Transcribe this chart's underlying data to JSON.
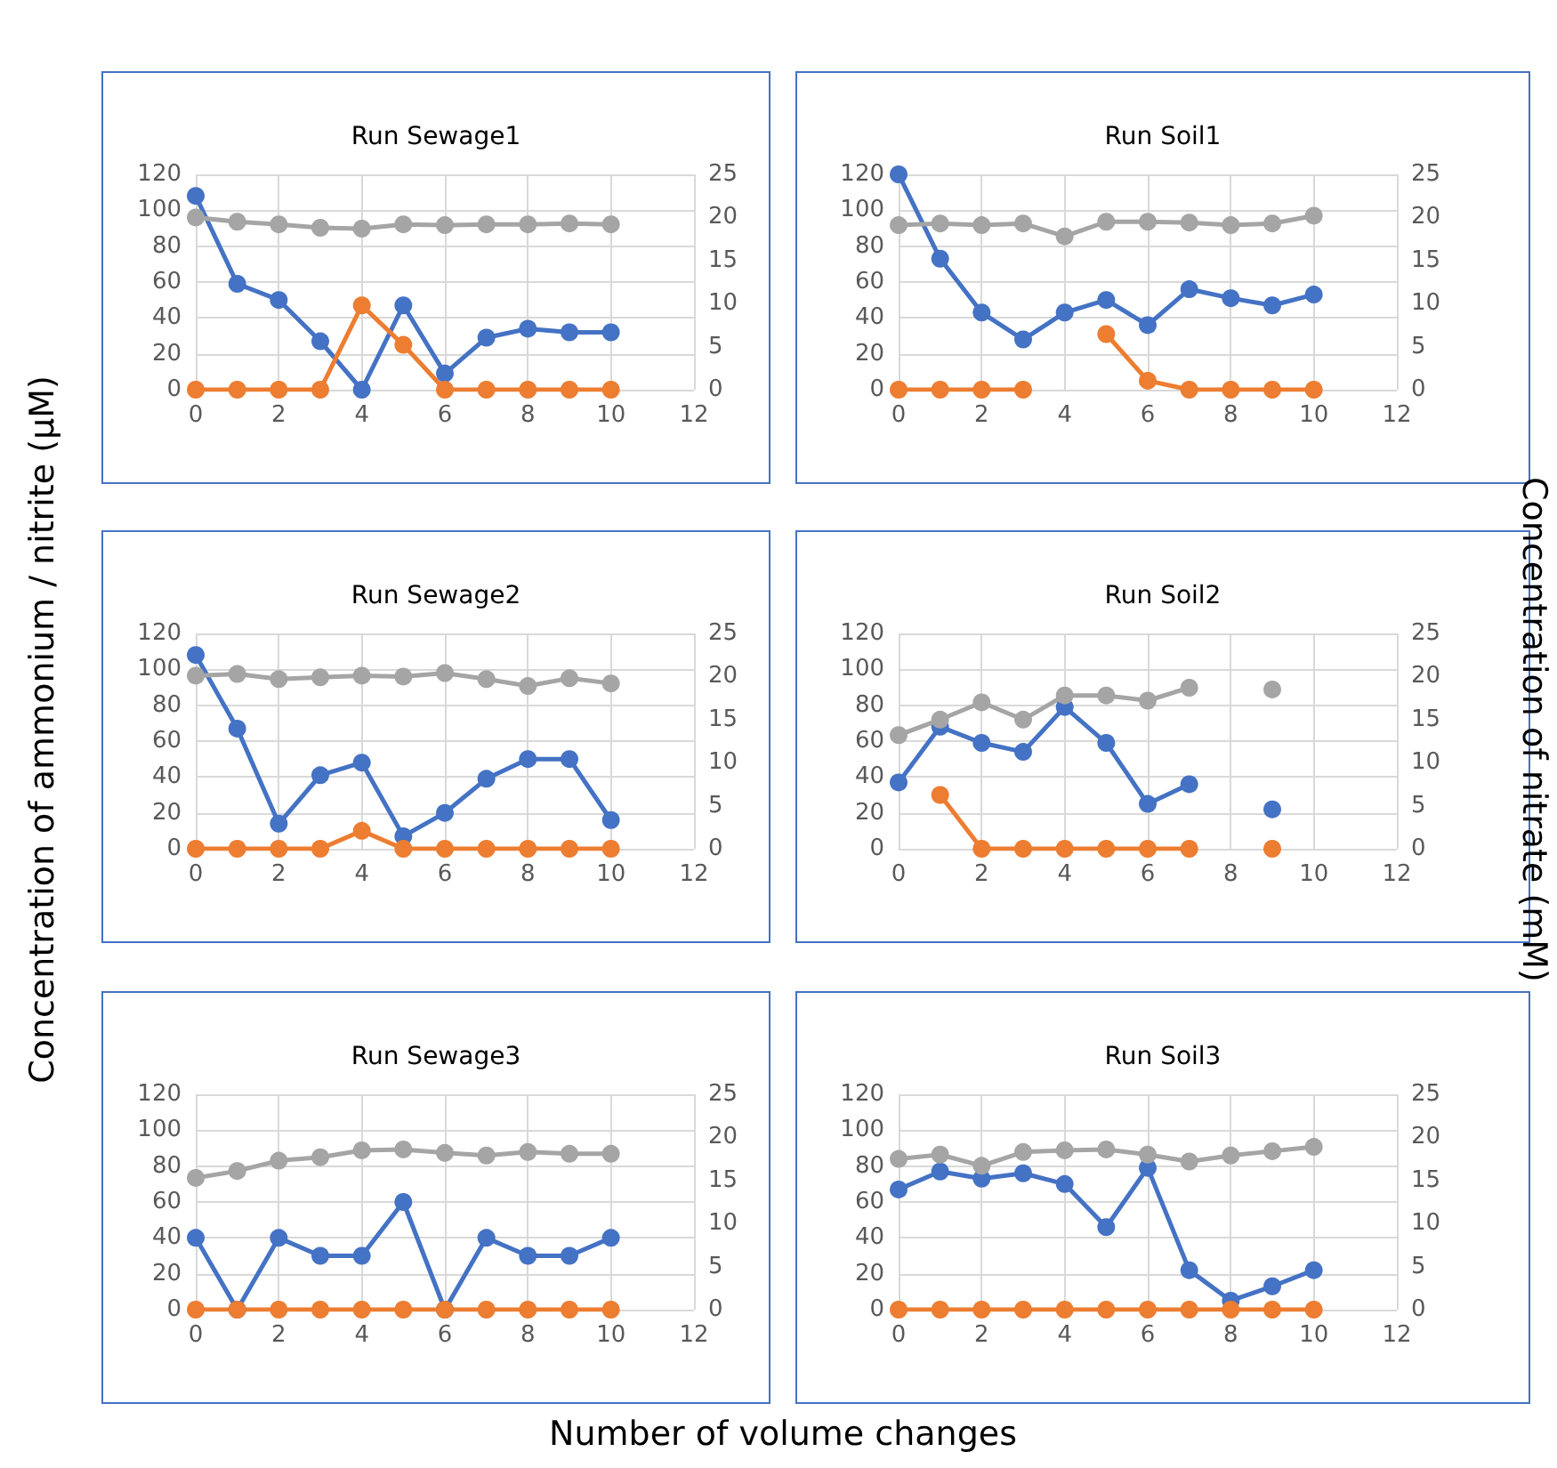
{
  "chart_data": [
    {
      "type": "line",
      "title": "Run Sewage1",
      "xlabel": "Number of volume changes",
      "ylabel": "Concentration of ammonium / nitrite (µM)",
      "y2label": "Concentration of nitrate (mM)",
      "x": [
        0,
        1,
        2,
        3,
        4,
        5,
        6,
        7,
        8,
        9,
        10
      ],
      "xlim": [
        0,
        12
      ],
      "xticks": [
        0,
        2,
        4,
        6,
        8,
        10,
        12
      ],
      "ylim": [
        0,
        120
      ],
      "yticks": [
        0,
        20,
        40,
        60,
        80,
        100,
        120
      ],
      "y2lim": [
        0,
        25
      ],
      "y2ticks": [
        0,
        5,
        10,
        15,
        20,
        25
      ],
      "grid": true,
      "marker": "circle",
      "line_style": "solid",
      "series": [
        {
          "color": "#a5a5a5",
          "axis": "y2",
          "values": [
            20,
            19.5,
            19.2,
            18.8,
            18.7,
            19.2,
            19.1,
            19.2,
            19.2,
            19.3,
            19.2
          ]
        },
        {
          "color": "#4472c4",
          "values": [
            108,
            59,
            50,
            27,
            0,
            47,
            9,
            29,
            34,
            32,
            32
          ]
        },
        {
          "color": "#ed7d31",
          "values": [
            0,
            0,
            0,
            0,
            47,
            25,
            0,
            0,
            0,
            0,
            0
          ]
        }
      ]
    },
    {
      "type": "line",
      "title": "Run Soil1",
      "x": [
        0,
        1,
        2,
        3,
        4,
        5,
        6,
        7,
        8,
        9,
        10
      ],
      "xlim": [
        0,
        12
      ],
      "xticks": [
        0,
        2,
        4,
        6,
        8,
        10,
        12
      ],
      "ylim": [
        0,
        120
      ],
      "yticks": [
        0,
        20,
        40,
        60,
        80,
        100,
        120
      ],
      "y2lim": [
        0,
        25
      ],
      "y2ticks": [
        0,
        5,
        10,
        15,
        20,
        25
      ],
      "grid": true,
      "marker": "circle",
      "line_style": "solid",
      "series": [
        {
          "color": "#a5a5a5",
          "axis": "y2",
          "values": [
            19.1,
            19.3,
            19.1,
            19.3,
            17.8,
            19.5,
            19.5,
            19.4,
            19.1,
            19.3,
            20.2
          ]
        },
        {
          "color": "#4472c4",
          "values": [
            120,
            73,
            43,
            28,
            43,
            50,
            36,
            56,
            51,
            47,
            53
          ]
        },
        {
          "color": "#ed7d31",
          "values": [
            0,
            0,
            0,
            0,
            null,
            31,
            5,
            0,
            0,
            0,
            0
          ]
        }
      ]
    },
    {
      "type": "line",
      "title": "Run Sewage2",
      "x": [
        0,
        1,
        2,
        3,
        4,
        5,
        6,
        7,
        8,
        9,
        10
      ],
      "xlim": [
        0,
        12
      ],
      "xticks": [
        0,
        2,
        4,
        6,
        8,
        10,
        12
      ],
      "ylim": [
        0,
        120
      ],
      "yticks": [
        0,
        20,
        40,
        60,
        80,
        100,
        120
      ],
      "y2lim": [
        0,
        25
      ],
      "y2ticks": [
        0,
        5,
        10,
        15,
        20,
        25
      ],
      "grid": true,
      "marker": "circle",
      "line_style": "solid",
      "series": [
        {
          "color": "#a5a5a5",
          "axis": "y2",
          "values": [
            20.1,
            20.3,
            19.7,
            19.9,
            20.1,
            20,
            20.4,
            19.7,
            18.9,
            19.8,
            19.2
          ]
        },
        {
          "color": "#4472c4",
          "values": [
            108,
            67,
            14,
            41,
            48,
            7,
            20,
            39,
            50,
            50,
            16
          ]
        },
        {
          "color": "#ed7d31",
          "values": [
            0,
            0,
            0,
            0,
            10,
            0,
            0,
            0,
            0,
            0,
            0
          ]
        }
      ]
    },
    {
      "type": "line",
      "title": "Run Soil2",
      "x": [
        0,
        1,
        2,
        3,
        4,
        5,
        6,
        7,
        8,
        9
      ],
      "xlim": [
        0,
        12
      ],
      "xticks": [
        0,
        2,
        4,
        6,
        8,
        10,
        12
      ],
      "ylim": [
        0,
        120
      ],
      "yticks": [
        0,
        20,
        40,
        60,
        80,
        100,
        120
      ],
      "y2lim": [
        0,
        25
      ],
      "y2ticks": [
        0,
        5,
        10,
        15,
        20,
        25
      ],
      "grid": true,
      "marker": "circle",
      "line_style": "solid",
      "series": [
        {
          "color": "#a5a5a5",
          "axis": "y2",
          "values": [
            13.2,
            15,
            17,
            15,
            17.8,
            17.8,
            17.2,
            18.7,
            null,
            18.5
          ]
        },
        {
          "color": "#4472c4",
          "values": [
            37,
            68,
            59,
            54,
            79,
            59,
            25,
            36,
            null,
            22
          ]
        },
        {
          "color": "#ed7d31",
          "values": [
            null,
            30,
            0,
            0,
            0,
            0,
            0,
            0,
            null,
            0
          ]
        }
      ]
    },
    {
      "type": "line",
      "title": "Run Sewage3",
      "x": [
        0,
        1,
        2,
        3,
        4,
        5,
        6,
        7,
        8,
        9,
        10
      ],
      "xlim": [
        0,
        12
      ],
      "xticks": [
        0,
        2,
        4,
        6,
        8,
        10,
        12
      ],
      "ylim": [
        0,
        120
      ],
      "yticks": [
        0,
        20,
        40,
        60,
        80,
        100,
        120
      ],
      "y2lim": [
        0,
        25
      ],
      "y2ticks": [
        0,
        5,
        10,
        15,
        20,
        25
      ],
      "grid": true,
      "marker": "circle",
      "line_style": "solid",
      "series": [
        {
          "color": "#a5a5a5",
          "axis": "y2",
          "values": [
            15.3,
            16.1,
            17.3,
            17.7,
            18.5,
            18.6,
            18.2,
            17.9,
            18.3,
            18.1,
            18.1
          ]
        },
        {
          "color": "#4472c4",
          "values": [
            40,
            0,
            40,
            30,
            30,
            60,
            0,
            40,
            30,
            30,
            40
          ]
        },
        {
          "color": "#ed7d31",
          "values": [
            0,
            0,
            0,
            0,
            0,
            0,
            0,
            0,
            0,
            0,
            0
          ]
        }
      ]
    },
    {
      "type": "line",
      "title": "Run Soil3",
      "x": [
        0,
        1,
        2,
        3,
        4,
        5,
        6,
        7,
        8,
        9,
        10
      ],
      "xlim": [
        0,
        12
      ],
      "xticks": [
        0,
        2,
        4,
        6,
        8,
        10,
        12
      ],
      "ylim": [
        0,
        120
      ],
      "yticks": [
        0,
        20,
        40,
        60,
        80,
        100,
        120
      ],
      "y2lim": [
        0,
        25
      ],
      "y2ticks": [
        0,
        5,
        10,
        15,
        20,
        25
      ],
      "grid": true,
      "marker": "circle",
      "line_style": "solid",
      "series": [
        {
          "color": "#a5a5a5",
          "axis": "y2",
          "values": [
            17.5,
            18,
            16.7,
            18.3,
            18.5,
            18.6,
            18,
            17.2,
            17.9,
            18.4,
            18.9
          ]
        },
        {
          "color": "#4472c4",
          "values": [
            67,
            77,
            73,
            76,
            70,
            46,
            79,
            22,
            5,
            13,
            22
          ]
        },
        {
          "color": "#ed7d31",
          "values": [
            0,
            0,
            0,
            0,
            0,
            0,
            0,
            0,
            0,
            0,
            0
          ]
        }
      ]
    }
  ]
}
